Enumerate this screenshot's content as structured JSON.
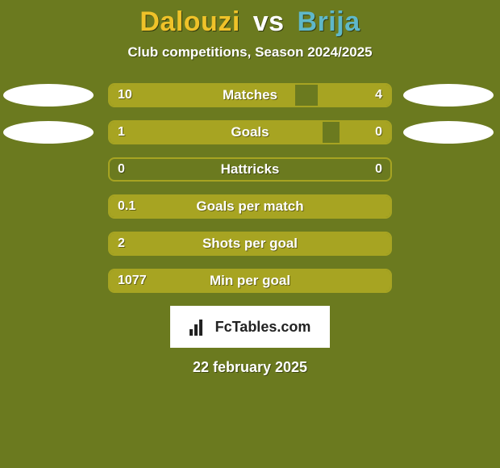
{
  "colors": {
    "background": "#6b7a1f",
    "title_p1": "#efc229",
    "title_vs": "#ffffff",
    "title_p2": "#5fb8c9",
    "subtitle": "#ffffff",
    "bar_border": "#a7a422",
    "bar_fill": "#a7a422",
    "bar_label": "#ffffff",
    "value_text": "#ffffff",
    "ellipse": "#ffffff",
    "logo_bg": "#ffffff",
    "logo_icon": "#222222",
    "logo_text": "#222222",
    "date": "#ffffff"
  },
  "header": {
    "player1": "Dalouzi",
    "vs": "vs",
    "player2": "Brija",
    "subtitle": "Club competitions, Season 2024/2025"
  },
  "rows": [
    {
      "label": "Matches",
      "left_val": "10",
      "right_val": "4",
      "left_pct": 66,
      "right_pct": 26,
      "show_ellipses": true
    },
    {
      "label": "Goals",
      "left_val": "1",
      "right_val": "0",
      "left_pct": 76,
      "right_pct": 18,
      "show_ellipses": true
    },
    {
      "label": "Hattricks",
      "left_val": "0",
      "right_val": "0",
      "left_pct": 0,
      "right_pct": 0,
      "show_ellipses": false
    },
    {
      "label": "Goals per match",
      "left_val": "0.1",
      "right_val": "",
      "left_pct": 100,
      "right_pct": 0,
      "show_ellipses": false
    },
    {
      "label": "Shots per goal",
      "left_val": "2",
      "right_val": "",
      "left_pct": 100,
      "right_pct": 0,
      "show_ellipses": false
    },
    {
      "label": "Min per goal",
      "left_val": "1077",
      "right_val": "",
      "left_pct": 100,
      "right_pct": 0,
      "show_ellipses": false
    }
  ],
  "logo": {
    "text": "FcTables.com"
  },
  "date": "22 february 2025"
}
